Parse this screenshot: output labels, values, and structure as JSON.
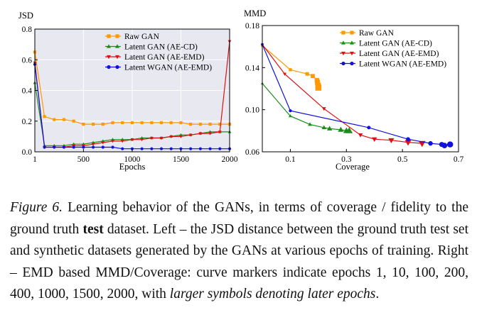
{
  "chart_data": [
    {
      "type": "line",
      "ylabel": "JSD",
      "xlabel": "Epochs",
      "xlim": [
        1,
        2000
      ],
      "ylim": [
        0,
        0.8
      ],
      "xticks": [
        1,
        500,
        1000,
        1500,
        2000
      ],
      "yticks": [
        0.0,
        0.2,
        0.4,
        0.6,
        0.8
      ],
      "legend": "top-center",
      "series": [
        {
          "name": "Raw GAN",
          "color": "#ff9900",
          "marker": "square",
          "x": [
            1,
            100,
            200,
            300,
            400,
            500,
            600,
            700,
            800,
            900,
            1000,
            1100,
            1200,
            1300,
            1400,
            1500,
            1600,
            1700,
            1800,
            1900,
            2000
          ],
          "y": [
            0.65,
            0.23,
            0.21,
            0.21,
            0.2,
            0.18,
            0.18,
            0.18,
            0.19,
            0.19,
            0.19,
            0.19,
            0.19,
            0.19,
            0.19,
            0.19,
            0.18,
            0.18,
            0.18,
            0.18,
            0.18
          ]
        },
        {
          "name": "Latent GAN (AE-CD)",
          "color": "#1a8c1a",
          "marker": "triangle-up",
          "x": [
            1,
            100,
            200,
            300,
            400,
            500,
            600,
            700,
            800,
            900,
            1000,
            1100,
            1200,
            1300,
            1400,
            1500,
            1600,
            1700,
            1800,
            1900,
            2000
          ],
          "y": [
            0.45,
            0.04,
            0.04,
            0.04,
            0.05,
            0.05,
            0.06,
            0.07,
            0.08,
            0.08,
            0.08,
            0.09,
            0.09,
            0.09,
            0.1,
            0.11,
            0.11,
            0.12,
            0.13,
            0.13,
            0.13
          ]
        },
        {
          "name": "Latent GAN (AE-EMD)",
          "color": "#e01010",
          "marker": "triangle-down",
          "x": [
            1,
            100,
            200,
            300,
            400,
            500,
            600,
            700,
            800,
            900,
            1000,
            1100,
            1200,
            1300,
            1400,
            1500,
            1600,
            1700,
            1800,
            1900,
            2000
          ],
          "y": [
            0.58,
            0.03,
            0.03,
            0.03,
            0.04,
            0.04,
            0.05,
            0.06,
            0.07,
            0.07,
            0.08,
            0.08,
            0.09,
            0.09,
            0.1,
            0.1,
            0.11,
            0.12,
            0.12,
            0.13,
            0.72
          ]
        },
        {
          "name": "Latent WGAN (AE-EMD)",
          "color": "#1010e0",
          "marker": "circle",
          "x": [
            1,
            100,
            200,
            300,
            400,
            500,
            600,
            700,
            800,
            900,
            1000,
            1100,
            1200,
            1300,
            1400,
            1500,
            1600,
            1700,
            1800,
            1900,
            2000
          ],
          "y": [
            0.57,
            0.03,
            0.03,
            0.03,
            0.03,
            0.03,
            0.03,
            0.03,
            0.03,
            0.02,
            0.02,
            0.02,
            0.02,
            0.02,
            0.02,
            0.02,
            0.02,
            0.02,
            0.02,
            0.02,
            0.02
          ]
        }
      ]
    },
    {
      "type": "line",
      "ylabel": "MMD",
      "xlabel": "Coverage",
      "xlim": [
        0,
        0.7
      ],
      "ylim": [
        0.06,
        0.18
      ],
      "xticks": [
        0.1,
        0.3,
        0.5,
        0.7
      ],
      "yticks": [
        0.06,
        0.1,
        0.14,
        0.18
      ],
      "legend": "top-center",
      "series": [
        {
          "name": "Raw GAN",
          "color": "#ff9900",
          "marker": "square",
          "x": [
            0.0,
            0.1,
            0.16,
            0.18,
            0.195,
            0.197,
            0.199,
            0.2
          ],
          "y": [
            0.161,
            0.138,
            0.134,
            0.132,
            0.128,
            0.126,
            0.123,
            0.121
          ]
        },
        {
          "name": "Latent GAN (AE-CD)",
          "color": "#1a8c1a",
          "marker": "triangle-up",
          "x": [
            0.0,
            0.1,
            0.17,
            0.22,
            0.24,
            0.28,
            0.3,
            0.31
          ],
          "y": [
            0.125,
            0.094,
            0.086,
            0.083,
            0.082,
            0.081,
            0.08,
            0.08
          ]
        },
        {
          "name": "Latent GAN (AE-EMD)",
          "color": "#e01010",
          "marker": "triangle-down",
          "x": [
            0.0,
            0.08,
            0.22,
            0.35,
            0.4,
            0.46,
            0.52,
            0.57
          ],
          "y": [
            0.162,
            0.134,
            0.101,
            0.076,
            0.072,
            0.071,
            0.069,
            0.068
          ]
        },
        {
          "name": "Latent WGAN (AE-EMD)",
          "color": "#1010e0",
          "marker": "circle",
          "x": [
            0.0,
            0.1,
            0.38,
            0.52,
            0.6,
            0.64,
            0.65,
            0.67
          ],
          "y": [
            0.162,
            0.099,
            0.083,
            0.072,
            0.068,
            0.067,
            0.066,
            0.067
          ]
        }
      ]
    }
  ],
  "caption": {
    "fig_label": "Figure 6.",
    "part1": " Learning behavior of the GANs, in terms of coverage / fidelity to the ground truth ",
    "bold_word": "test",
    "part2": " dataset.  Left – the JSD distance between the ground truth test set and synthetic datasets generated by the GANs at various epochs of training. Right – EMD based MMD/Coverage: curve markers indicate epochs 1, 10, 100, 200, 400, 1000, 1500, 2000, with ",
    "italic_tail": "larger symbols denoting later epochs",
    "end": "."
  }
}
